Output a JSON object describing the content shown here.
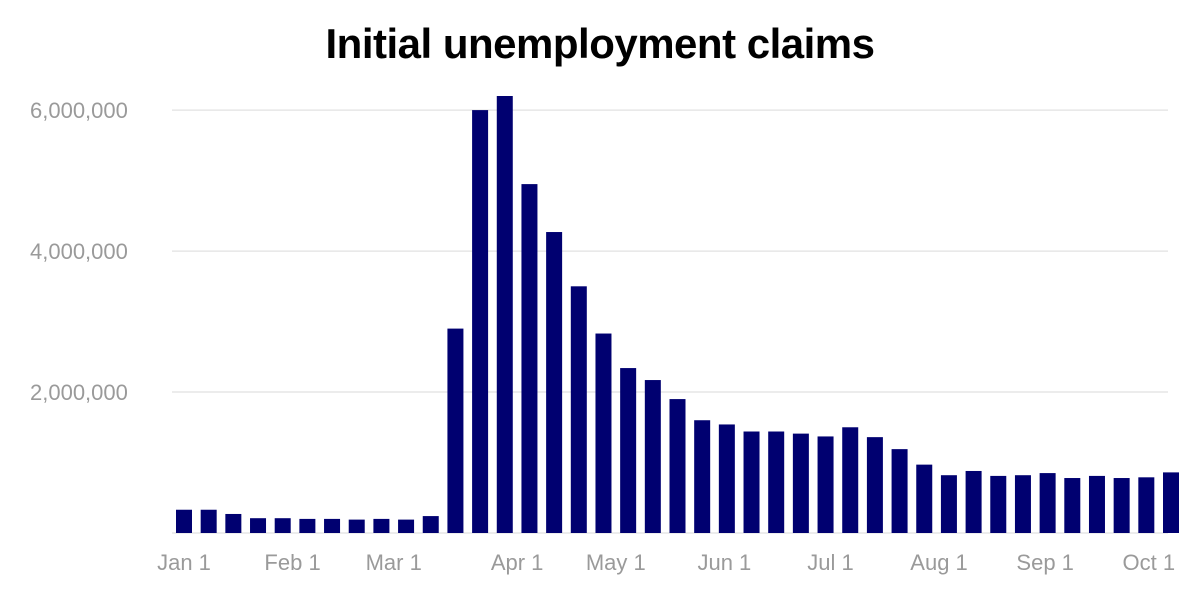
{
  "chart_data": {
    "type": "bar",
    "title": "Initial unemployment claims",
    "xlabel": "",
    "ylabel": "",
    "ylim": [
      0,
      6200000
    ],
    "grid": true,
    "bar_color": "#000070",
    "grid_color": "#e6e6e6",
    "tick_color": "#9a9a9a",
    "y_ticks": [
      {
        "value": 2000000,
        "label": "2,000,000"
      },
      {
        "value": 4000000,
        "label": "4,000,000"
      },
      {
        "value": 6000000,
        "label": "6,000,000"
      }
    ],
    "x_ticks": [
      {
        "index": 0,
        "label": "Jan 1"
      },
      {
        "index": 4.4,
        "label": "Feb 1"
      },
      {
        "index": 8.5,
        "label": "Mar 1"
      },
      {
        "index": 13.5,
        "label": "Apr 1"
      },
      {
        "index": 17.5,
        "label": "May 1"
      },
      {
        "index": 21.9,
        "label": "Jun 1"
      },
      {
        "index": 26.2,
        "label": "Jul 1"
      },
      {
        "index": 30.6,
        "label": "Aug 1"
      },
      {
        "index": 34.9,
        "label": "Sep 1"
      },
      {
        "index": 39.1,
        "label": "Oct 1"
      }
    ],
    "values": [
      330000,
      330000,
      270000,
      210000,
      210000,
      200000,
      200000,
      190000,
      200000,
      190000,
      240000,
      2900000,
      6000000,
      6200000,
      4950000,
      4270000,
      3500000,
      2830000,
      2340000,
      2170000,
      1900000,
      1600000,
      1540000,
      1440000,
      1440000,
      1410000,
      1370000,
      1500000,
      1360000,
      1190000,
      970000,
      820000,
      880000,
      810000,
      820000,
      850000,
      780000,
      810000,
      780000,
      790000,
      860000
    ]
  }
}
